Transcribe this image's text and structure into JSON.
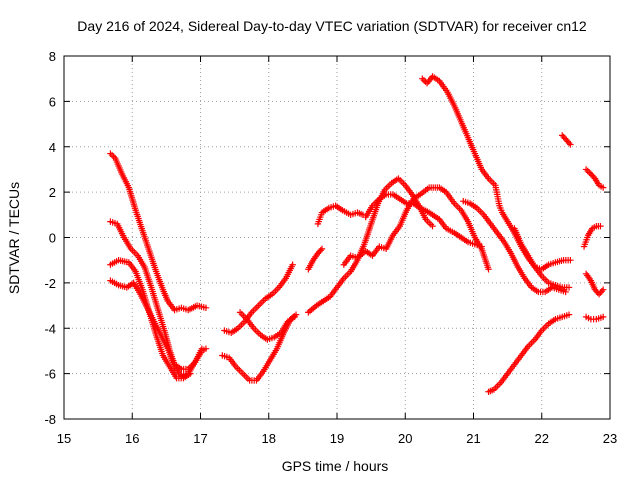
{
  "chart_data": {
    "type": "scatter",
    "title": "Day 216 of 2024, Sidereal Day-to-day VTEC variation (SDTVAR) for receiver cn12",
    "xlabel": "GPS time / hours",
    "ylabel": "SDTVAR / TECUs",
    "xlim": [
      15,
      23
    ],
    "ylim": [
      -8,
      8
    ],
    "xticks": [
      "15",
      "16",
      "17",
      "18",
      "19",
      "20",
      "21",
      "22",
      "23"
    ],
    "yticks": [
      "8",
      "6",
      "4",
      "2",
      "0",
      "-2",
      "-4",
      "-6",
      "-8"
    ],
    "grid": true,
    "marker": "plus",
    "color": "#ff0000",
    "series": [
      {
        "name": "s1",
        "points": [
          [
            15.68,
            3.7
          ],
          [
            15.75,
            3.5
          ],
          [
            15.85,
            2.8
          ],
          [
            15.95,
            2.2
          ],
          [
            16.05,
            1.2
          ],
          [
            16.15,
            0.3
          ],
          [
            16.25,
            -0.6
          ],
          [
            16.35,
            -1.5
          ],
          [
            16.45,
            -2.3
          ],
          [
            16.52,
            -2.8
          ],
          [
            16.62,
            -3.2
          ],
          [
            16.72,
            -3.1
          ],
          [
            16.82,
            -3.2
          ],
          [
            16.95,
            -3.0
          ],
          [
            17.08,
            -3.1
          ]
        ]
      },
      {
        "name": "s2",
        "points": [
          [
            15.68,
            0.7
          ],
          [
            15.78,
            0.6
          ],
          [
            15.88,
            0.0
          ],
          [
            15.98,
            -0.5
          ],
          [
            16.08,
            -0.8
          ],
          [
            16.18,
            -1.3
          ],
          [
            16.28,
            -2.2
          ],
          [
            16.38,
            -3.2
          ],
          [
            16.48,
            -4.2
          ],
          [
            16.55,
            -5.0
          ],
          [
            16.62,
            -5.6
          ],
          [
            16.72,
            -5.8
          ],
          [
            16.82,
            -5.8
          ],
          [
            16.92,
            -5.5
          ],
          [
            17.02,
            -5.0
          ],
          [
            17.08,
            -4.9
          ]
        ]
      },
      {
        "name": "s3",
        "points": [
          [
            15.68,
            -1.2
          ],
          [
            15.8,
            -1.0
          ],
          [
            15.95,
            -1.1
          ],
          [
            16.05,
            -1.5
          ],
          [
            16.15,
            -2.3
          ],
          [
            16.25,
            -3.3
          ],
          [
            16.35,
            -4.3
          ],
          [
            16.45,
            -5.2
          ],
          [
            16.55,
            -5.7
          ],
          [
            16.65,
            -6.2
          ],
          [
            16.75,
            -6.2
          ],
          [
            16.85,
            -6.0
          ]
        ]
      },
      {
        "name": "s4",
        "points": [
          [
            15.68,
            -1.9
          ],
          [
            15.8,
            -2.1
          ],
          [
            15.92,
            -2.2
          ],
          [
            16.02,
            -2.0
          ],
          [
            16.12,
            -2.5
          ],
          [
            16.22,
            -3.1
          ],
          [
            16.32,
            -3.7
          ],
          [
            16.42,
            -4.3
          ],
          [
            16.52,
            -4.9
          ],
          [
            16.62,
            -5.7
          ],
          [
            16.72,
            -6.1
          ],
          [
            16.82,
            -6.0
          ],
          [
            16.92,
            -5.5
          ],
          [
            17.02,
            -4.9
          ]
        ]
      },
      {
        "name": "s5",
        "points": [
          [
            17.32,
            -5.2
          ],
          [
            17.42,
            -5.3
          ],
          [
            17.52,
            -5.7
          ],
          [
            17.62,
            -6.0
          ],
          [
            17.72,
            -6.3
          ],
          [
            17.82,
            -6.3
          ],
          [
            17.92,
            -5.9
          ],
          [
            18.02,
            -5.4
          ],
          [
            18.12,
            -4.9
          ],
          [
            18.22,
            -4.2
          ],
          [
            18.32,
            -3.6
          ],
          [
            18.4,
            -3.4
          ]
        ]
      },
      {
        "name": "s6",
        "points": [
          [
            17.35,
            -4.1
          ],
          [
            17.45,
            -4.2
          ],
          [
            17.55,
            -4.0
          ],
          [
            17.65,
            -3.7
          ],
          [
            17.75,
            -3.3
          ],
          [
            17.85,
            -3.0
          ],
          [
            17.95,
            -2.7
          ],
          [
            18.05,
            -2.5
          ],
          [
            18.15,
            -2.2
          ],
          [
            18.25,
            -1.8
          ],
          [
            18.35,
            -1.2
          ]
        ]
      },
      {
        "name": "s7",
        "points": [
          [
            17.58,
            -3.3
          ],
          [
            17.68,
            -3.6
          ],
          [
            17.78,
            -4.0
          ],
          [
            17.88,
            -4.3
          ],
          [
            17.98,
            -4.5
          ],
          [
            18.08,
            -4.4
          ],
          [
            18.18,
            -4.2
          ],
          [
            18.28,
            -3.7
          ],
          [
            18.38,
            -3.5
          ]
        ]
      },
      {
        "name": "s8",
        "points": [
          [
            18.58,
            -1.4
          ],
          [
            18.65,
            -1.0
          ],
          [
            18.72,
            -0.7
          ],
          [
            18.78,
            -0.5
          ]
        ]
      },
      {
        "name": "s9",
        "points": [
          [
            18.72,
            0.6
          ],
          [
            18.78,
            1.1
          ],
          [
            18.88,
            1.3
          ],
          [
            18.98,
            1.4
          ],
          [
            19.08,
            1.2
          ],
          [
            19.2,
            1.0
          ],
          [
            19.3,
            1.1
          ],
          [
            19.38,
            1.0
          ]
        ]
      },
      {
        "name": "s10",
        "points": [
          [
            18.58,
            -3.3
          ],
          [
            18.7,
            -3.0
          ],
          [
            18.8,
            -2.8
          ],
          [
            18.9,
            -2.6
          ],
          [
            19.0,
            -2.2
          ],
          [
            19.1,
            -1.8
          ],
          [
            19.2,
            -1.5
          ],
          [
            19.3,
            -1.0
          ],
          [
            19.4,
            -0.3
          ],
          [
            19.5,
            0.6
          ],
          [
            19.6,
            1.5
          ],
          [
            19.7,
            2.1
          ],
          [
            19.8,
            2.4
          ],
          [
            19.9,
            2.6
          ],
          [
            20.0,
            2.3
          ],
          [
            20.1,
            1.9
          ],
          [
            20.2,
            1.4
          ],
          [
            20.3,
            0.8
          ],
          [
            20.4,
            0.5
          ]
        ]
      },
      {
        "name": "s11",
        "points": [
          [
            19.1,
            -1.2
          ],
          [
            19.2,
            -0.8
          ],
          [
            19.3,
            -0.9
          ],
          [
            19.42,
            -0.6
          ],
          [
            19.52,
            -0.8
          ],
          [
            19.62,
            -0.4
          ],
          [
            19.72,
            -0.5
          ],
          [
            19.82,
            0.1
          ],
          [
            19.92,
            0.5
          ],
          [
            20.02,
            1.2
          ],
          [
            20.12,
            1.7
          ],
          [
            20.22,
            1.9
          ],
          [
            20.35,
            2.2
          ],
          [
            20.5,
            2.2
          ],
          [
            20.6,
            2.0
          ],
          [
            20.72,
            1.5
          ],
          [
            20.82,
            1.2
          ],
          [
            20.92,
            0.7
          ],
          [
            21.02,
            0.0
          ],
          [
            21.12,
            -0.5
          ],
          [
            21.22,
            -1.4
          ]
        ]
      },
      {
        "name": "s12",
        "points": [
          [
            19.42,
            0.9
          ],
          [
            19.52,
            1.4
          ],
          [
            19.62,
            1.7
          ],
          [
            19.72,
            1.9
          ],
          [
            19.82,
            1.9
          ],
          [
            19.92,
            1.7
          ],
          [
            20.02,
            1.5
          ],
          [
            20.12,
            1.5
          ],
          [
            20.22,
            1.3
          ],
          [
            20.35,
            1.1
          ],
          [
            20.5,
            0.8
          ],
          [
            20.6,
            0.4
          ],
          [
            20.72,
            0.2
          ],
          [
            20.82,
            0.0
          ],
          [
            20.92,
            -0.2
          ],
          [
            21.02,
            -0.3
          ],
          [
            21.12,
            -0.4
          ]
        ]
      },
      {
        "name": "s13",
        "points": [
          [
            20.25,
            7.0
          ],
          [
            20.32,
            6.8
          ],
          [
            20.4,
            7.1
          ],
          [
            20.5,
            6.9
          ],
          [
            20.62,
            6.4
          ],
          [
            20.72,
            5.8
          ],
          [
            20.82,
            5.1
          ],
          [
            20.92,
            4.4
          ],
          [
            21.02,
            3.7
          ],
          [
            21.12,
            3.0
          ],
          [
            21.22,
            2.6
          ],
          [
            21.32,
            2.3
          ],
          [
            21.38,
            1.4
          ],
          [
            21.42,
            1.1
          ],
          [
            21.5,
            0.7
          ],
          [
            21.6,
            0.2
          ],
          [
            21.7,
            -0.4
          ],
          [
            21.8,
            -0.9
          ],
          [
            21.9,
            -1.3
          ],
          [
            22.0,
            -1.4
          ],
          [
            22.1,
            -1.2
          ],
          [
            22.2,
            -1.1
          ],
          [
            22.32,
            -1.0
          ],
          [
            22.42,
            -1.0
          ]
        ]
      },
      {
        "name": "s14",
        "points": [
          [
            20.85,
            1.6
          ],
          [
            20.95,
            1.5
          ],
          [
            21.05,
            1.3
          ],
          [
            21.15,
            1.0
          ],
          [
            21.25,
            0.6
          ],
          [
            21.35,
            0.2
          ],
          [
            21.45,
            -0.2
          ],
          [
            21.55,
            -0.7
          ],
          [
            21.65,
            -1.3
          ],
          [
            21.75,
            -1.8
          ],
          [
            21.85,
            -2.2
          ],
          [
            21.95,
            -2.4
          ],
          [
            22.05,
            -2.4
          ],
          [
            22.15,
            -2.2
          ],
          [
            22.25,
            -2.3
          ],
          [
            22.35,
            -2.4
          ]
        ]
      },
      {
        "name": "s15",
        "points": [
          [
            21.22,
            -6.8
          ],
          [
            21.3,
            -6.7
          ],
          [
            21.4,
            -6.4
          ],
          [
            21.5,
            -6.0
          ],
          [
            21.6,
            -5.6
          ],
          [
            21.7,
            -5.2
          ],
          [
            21.8,
            -4.8
          ],
          [
            21.9,
            -4.5
          ],
          [
            22.0,
            -4.1
          ],
          [
            22.1,
            -3.8
          ],
          [
            22.2,
            -3.6
          ],
          [
            22.3,
            -3.5
          ],
          [
            22.4,
            -3.4
          ]
        ]
      },
      {
        "name": "s16",
        "points": [
          [
            21.6,
            0.4
          ],
          [
            21.7,
            -0.3
          ],
          [
            21.8,
            -0.8
          ],
          [
            21.9,
            -1.3
          ],
          [
            22.0,
            -1.7
          ],
          [
            22.1,
            -2.0
          ],
          [
            22.2,
            -2.1
          ],
          [
            22.3,
            -2.2
          ],
          [
            22.4,
            -2.2
          ]
        ]
      },
      {
        "name": "s17",
        "points": [
          [
            22.3,
            4.5
          ],
          [
            22.36,
            4.3
          ],
          [
            22.42,
            4.1
          ]
        ]
      },
      {
        "name": "s18",
        "points": [
          [
            22.62,
            -0.4
          ],
          [
            22.68,
            0.1
          ],
          [
            22.74,
            0.4
          ],
          [
            22.8,
            0.5
          ],
          [
            22.86,
            0.5
          ]
        ]
      },
      {
        "name": "s19",
        "points": [
          [
            22.65,
            3.0
          ],
          [
            22.72,
            2.8
          ],
          [
            22.78,
            2.6
          ],
          [
            22.84,
            2.3
          ],
          [
            22.9,
            2.2
          ]
        ]
      },
      {
        "name": "s20",
        "points": [
          [
            22.65,
            -1.6
          ],
          [
            22.72,
            -1.9
          ],
          [
            22.78,
            -2.3
          ],
          [
            22.84,
            -2.5
          ],
          [
            22.9,
            -2.3
          ]
        ]
      },
      {
        "name": "s21",
        "points": [
          [
            22.65,
            -3.5
          ],
          [
            22.72,
            -3.6
          ],
          [
            22.8,
            -3.6
          ],
          [
            22.9,
            -3.5
          ]
        ]
      }
    ]
  }
}
